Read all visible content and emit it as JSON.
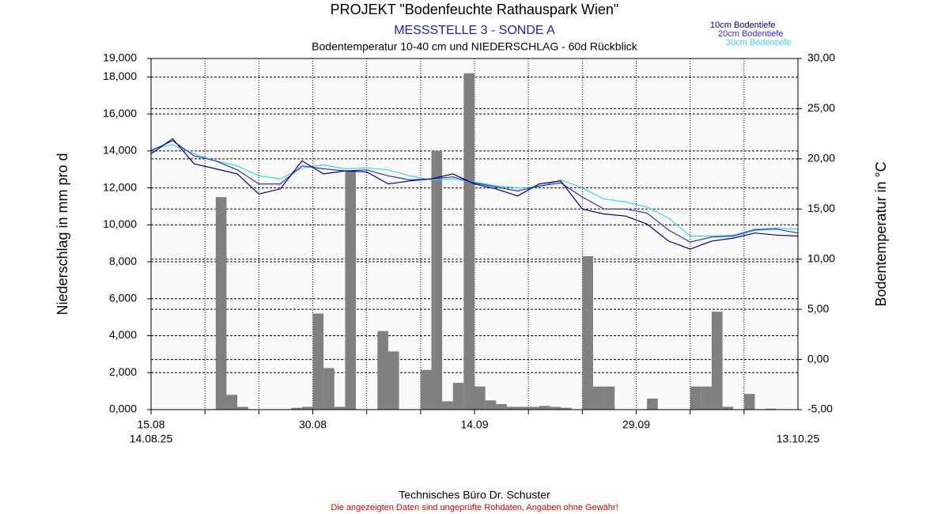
{
  "chart_data": {
    "type": "bar_line",
    "title": "PROJEKT \"Bodenfeuchte Rathauspark Wien\"",
    "subtitle": "MESSSTELLE 3 - SONDE A",
    "subtitle2": "Bodentemperatur 10-40 cm und NIEDERSCHLAG - 60d Rückblick",
    "ylabel": "Niederschlag in mm pro d",
    "y2label": "Bodentemperatur in °C",
    "start_label": "14.08.25",
    "end_label": "13.10.25",
    "footer": "Technisches Büro Dr. Schuster",
    "disclaimer": "Die angezeigten Daten sind ungeprüfte Rohdaten, Angaben ohne Gewähr!",
    "xlim": [
      0,
      60
    ],
    "xticks": [
      {
        "value": 0,
        "label": "15.08"
      },
      {
        "value": 15,
        "label": "30.08"
      },
      {
        "value": 30,
        "label": "14.09"
      },
      {
        "value": 45,
        "label": "29.09"
      }
    ],
    "xminor": [
      5,
      10,
      20,
      25,
      35,
      40,
      50,
      55
    ],
    "ylim": [
      0,
      19000
    ],
    "yticks": [
      {
        "value": 0,
        "label": "0,000"
      },
      {
        "value": 2000,
        "label": "2,000"
      },
      {
        "value": 4000,
        "label": "4,000"
      },
      {
        "value": 6000,
        "label": "6,000"
      },
      {
        "value": 8000,
        "label": "8,000"
      },
      {
        "value": 10000,
        "label": "10,000"
      },
      {
        "value": 12000,
        "label": "12,000"
      },
      {
        "value": 14000,
        "label": "14,000"
      },
      {
        "value": 16000,
        "label": "16,000"
      },
      {
        "value": 18000,
        "label": "18,000"
      },
      {
        "value": 19000,
        "label": "19,000"
      }
    ],
    "y2lim": [
      -5,
      30
    ],
    "y2ticks": [
      {
        "value": -5,
        "label": "-5,00"
      },
      {
        "value": 0,
        "label": "0,00"
      },
      {
        "value": 5,
        "label": "5,00"
      },
      {
        "value": 10,
        "label": "10,00"
      },
      {
        "value": 15,
        "label": "15,00"
      },
      {
        "value": 20,
        "label": "20,00"
      },
      {
        "value": 25,
        "label": "25,00"
      },
      {
        "value": 30,
        "label": "30,00"
      }
    ],
    "grid": true,
    "x": [
      0,
      1,
      2,
      3,
      4,
      5,
      6,
      7,
      8,
      9,
      10,
      11,
      12,
      13,
      14,
      15,
      16,
      17,
      18,
      19,
      20,
      21,
      22,
      23,
      24,
      25,
      26,
      27,
      28,
      29,
      30,
      31,
      32,
      33,
      34,
      35,
      36,
      37,
      38,
      39,
      40,
      41,
      42,
      43,
      44,
      45,
      46,
      47,
      48,
      49,
      50,
      51,
      52,
      53,
      54,
      55,
      56,
      57,
      58,
      59
    ],
    "bar_color": "#808080",
    "values": [
      0,
      0,
      0,
      0,
      0,
      0,
      11500,
      800,
      150,
      0,
      0,
      0,
      0,
      100,
      150,
      5200,
      2250,
      150,
      12900,
      0,
      0,
      4250,
      3150,
      0,
      0,
      2150,
      14000,
      450,
      1450,
      18200,
      1250,
      500,
      300,
      150,
      150,
      150,
      200,
      150,
      100,
      0,
      8300,
      1250,
      1250,
      0,
      0,
      0,
      600,
      0,
      0,
      0,
      1250,
      1250,
      5300,
      150,
      0,
      850,
      0,
      50,
      0,
      0
    ],
    "series": [
      {
        "name": "10cm Bodentiefe",
        "color": "#000080",
        "axis": "y2",
        "x": [
          0,
          2,
          4,
          6,
          8,
          10,
          12,
          14,
          16,
          18,
          20,
          22,
          24,
          26,
          28,
          30,
          32,
          34,
          36,
          38,
          40,
          42,
          44,
          46,
          48,
          50,
          52,
          54,
          56,
          58,
          60
        ],
        "values": [
          20.5,
          22.0,
          19.5,
          19.0,
          18.5,
          16.5,
          17.0,
          19.8,
          18.5,
          18.8,
          18.7,
          17.5,
          17.8,
          18.0,
          18.5,
          17.5,
          17.0,
          16.3,
          17.5,
          17.8,
          15.0,
          14.5,
          14.3,
          13.5,
          11.8,
          11.0,
          11.8,
          12.1,
          12.6,
          12.4,
          12.3
        ]
      },
      {
        "name": "20cm Bodentiefe",
        "color": "#2f2fd0",
        "axis": "y2",
        "x": [
          0,
          2,
          4,
          6,
          8,
          10,
          12,
          14,
          16,
          18,
          20,
          22,
          24,
          26,
          28,
          30,
          32,
          34,
          36,
          38,
          40,
          42,
          44,
          46,
          48,
          50,
          52,
          54,
          56,
          58,
          60
        ],
        "values": [
          20.8,
          21.8,
          20.3,
          19.8,
          18.9,
          17.5,
          17.5,
          19.3,
          19.0,
          18.8,
          18.9,
          18.3,
          17.9,
          18.0,
          18.2,
          17.6,
          17.2,
          16.8,
          17.3,
          17.6,
          16.2,
          15.0,
          15.0,
          14.6,
          12.9,
          11.7,
          12.2,
          12.3,
          12.9,
          13.0,
          12.6
        ]
      },
      {
        "name": "30cm Bodentiefe",
        "color": "#33d6ee",
        "axis": "y2",
        "x": [
          0,
          2,
          4,
          6,
          8,
          10,
          12,
          14,
          16,
          18,
          20,
          22,
          24,
          26,
          28,
          30,
          32,
          34,
          36,
          38,
          40,
          42,
          44,
          46,
          48,
          50,
          52,
          54,
          56,
          58,
          60
        ],
        "values": [
          21.0,
          21.4,
          20.5,
          19.8,
          19.3,
          18.3,
          18.0,
          19.1,
          19.4,
          19.0,
          19.1,
          18.9,
          18.3,
          17.9,
          18.0,
          17.7,
          17.3,
          17.1,
          17.2,
          17.9,
          17.1,
          16.0,
          15.7,
          15.2,
          14.1,
          12.3,
          12.3,
          12.4,
          13.0,
          13.1,
          13.0
        ]
      }
    ]
  }
}
